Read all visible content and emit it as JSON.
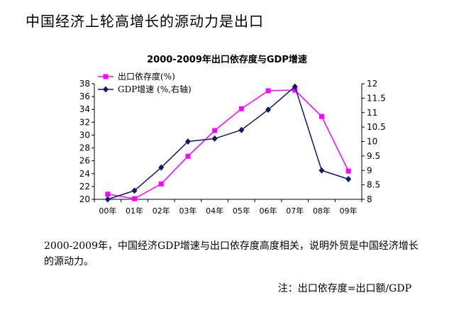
{
  "page": {
    "title": "中国经济上轮高增长的源动力是出口",
    "paragraph": "2000-2009年，中国经济GDP增速与出口依存度高度相关，说明外贸是中国经济增长的源动力。",
    "note": "注：出口依存度=出口额/GDP"
  },
  "chart_data": {
    "type": "line",
    "title": "2000-2009年出口依存度与GDP增速",
    "categories": [
      "00年",
      "01年",
      "02年",
      "03年",
      "04年",
      "05年",
      "06年",
      "07年",
      "08年",
      "09年"
    ],
    "series": [
      {
        "name": "出口依存度(%)",
        "axis": "left",
        "marker": "square",
        "color": "#ff00ff",
        "values": [
          20.8,
          20.1,
          22.4,
          26.7,
          30.7,
          34.1,
          36.9,
          37.0,
          32.9,
          24.4
        ]
      },
      {
        "name": "GDP增速 (%,右轴)",
        "axis": "right",
        "marker": "diamond",
        "color": "#0d1a66",
        "values": [
          8.0,
          8.3,
          9.1,
          10.0,
          10.1,
          10.4,
          11.1,
          11.9,
          9.0,
          8.7
        ]
      }
    ],
    "y_left": {
      "min": 20,
      "max": 38,
      "ticks": [
        20,
        22,
        24,
        26,
        28,
        30,
        32,
        34,
        36,
        38
      ]
    },
    "y_right": {
      "min": 8,
      "max": 12,
      "ticks": [
        "8",
        "8.5",
        "9",
        "9.5",
        "10",
        "10.5",
        "11",
        "11.5",
        "12"
      ]
    },
    "legend_position": "top-left",
    "grid": false
  }
}
